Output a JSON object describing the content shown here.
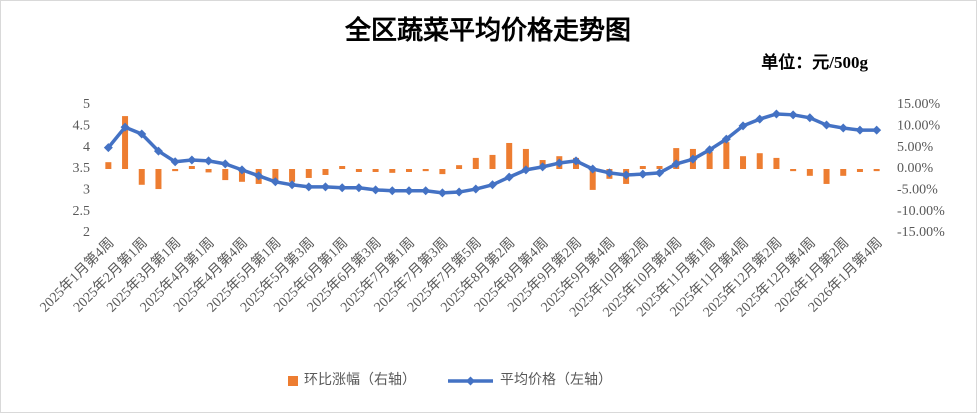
{
  "chart_data": {
    "type": "bar-line",
    "title": "全区蔬菜平均价格走势图",
    "subtitle": "单位：元/500g",
    "categories": [
      "2025年1月第4周",
      null,
      "2025年2月第1周",
      null,
      "2025年3月第1周",
      null,
      "2025年4月第1周",
      null,
      "2025年4月第4周",
      null,
      "2025年5月第1周",
      null,
      "2025年5月第3周",
      null,
      "2025年6月第1周",
      null,
      "2025年6月第3周",
      null,
      "2025年7月第1周",
      null,
      "2025年7月第3周",
      null,
      "2025年7月第5周",
      null,
      "2025年8月第2周",
      null,
      "2025年8月第4周",
      null,
      "2025年9月第2周",
      null,
      "2025年9月第4周",
      null,
      "2025年10月第2周",
      null,
      "2025年10月第4周",
      null,
      "2025年11月第1周",
      null,
      "2025年11月第4周",
      null,
      "2025年12月第2周",
      null,
      "2025年12月第4周",
      null,
      "2026年1月第2周",
      null,
      "2026年1月第4周"
    ],
    "series": [
      {
        "name": "环比涨幅（右轴）",
        "type": "bar",
        "axis": "y2",
        "color": "#ed7d31",
        "values": [
          1.6,
          12.4,
          -3.7,
          -4.7,
          -0.5,
          0.7,
          -0.8,
          -2.6,
          -3.0,
          -3.5,
          -2.6,
          -3.0,
          -2.1,
          -1.4,
          0.7,
          -0.7,
          -0.7,
          -0.9,
          -0.7,
          -0.5,
          -1.2,
          0.9,
          2.6,
          3.3,
          6.1,
          4.7,
          2.1,
          3.0,
          2.6,
          -4.9,
          -2.3,
          -3.5,
          0.7,
          0.7,
          4.9,
          4.7,
          4.0,
          6.3,
          3.0,
          3.7,
          2.6,
          -0.5,
          -1.6,
          -3.5,
          -1.6,
          -0.7,
          -0.5
        ]
      },
      {
        "name": "平均价格（左轴）",
        "type": "line",
        "color": "#4472c4",
        "values": [
          4.0,
          4.48,
          4.32,
          3.92,
          3.67,
          3.71,
          3.69,
          3.62,
          3.48,
          3.34,
          3.2,
          3.13,
          3.08,
          3.08,
          3.06,
          3.06,
          3.01,
          2.99,
          2.99,
          2.99,
          2.94,
          2.96,
          3.03,
          3.13,
          3.31,
          3.48,
          3.55,
          3.64,
          3.69,
          3.5,
          3.41,
          3.36,
          3.38,
          3.41,
          3.62,
          3.73,
          3.95,
          4.2,
          4.51,
          4.67,
          4.79,
          4.77,
          4.7,
          4.53,
          4.46,
          4.41,
          4.41
        ]
      }
    ],
    "ylim": [
      2,
      5
    ],
    "yticks": [
      2,
      2.5,
      3,
      3.5,
      4,
      4.5,
      5
    ],
    "y2lim": [
      -15,
      15
    ],
    "y2ticks": [
      {
        "value": -15,
        "label": "-15.00%"
      },
      {
        "value": -10,
        "label": "-10.00%"
      },
      {
        "value": -5,
        "label": "-5.00%"
      },
      {
        "value": 0,
        "label": "0.00%"
      },
      {
        "value": 5,
        "label": "5.00%"
      },
      {
        "value": 10,
        "label": "10.00%"
      },
      {
        "value": 15,
        "label": "15.00%"
      }
    ],
    "legend": "bottom"
  }
}
